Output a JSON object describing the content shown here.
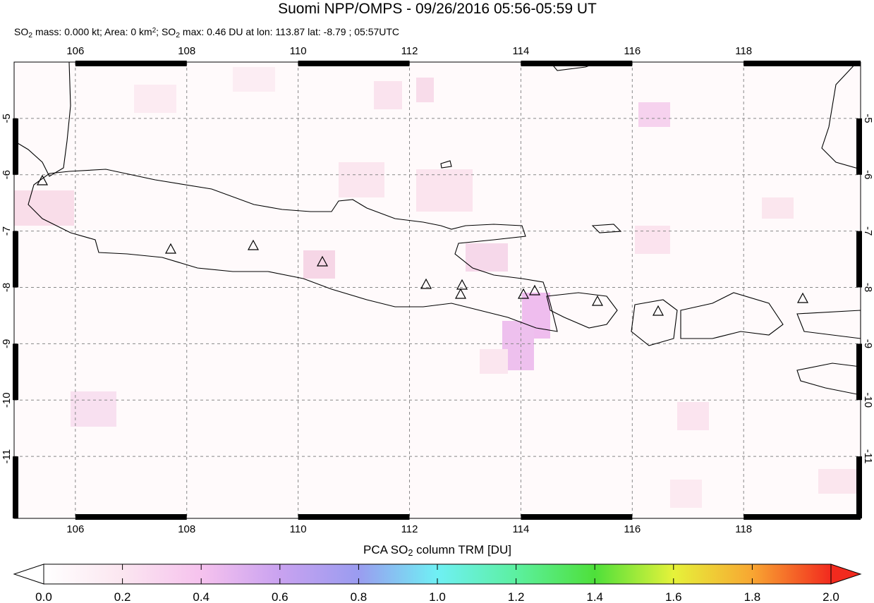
{
  "title": "Suomi NPP/OMPS - 09/26/2016 05:56-05:59 UT",
  "subtitle_parts": [
    {
      "text": "SO",
      "style": "normal"
    },
    {
      "text": "2",
      "style": "sub"
    },
    {
      "text": " mass: 0.000 kt; Area: 0 km",
      "style": "normal"
    },
    {
      "text": "2",
      "style": "sup"
    },
    {
      "text": "; SO",
      "style": "normal"
    },
    {
      "text": "2",
      "style": "sub"
    },
    {
      "text": " max: 0.46 DU at lon: 113.87 lat: -8.79 ; 05:57UTC",
      "style": "normal"
    }
  ],
  "map": {
    "xlim": [
      104.9,
      120.1
    ],
    "ylim": [
      -12.1,
      -4
    ],
    "xticks": [
      106,
      108,
      110,
      112,
      114,
      116,
      118
    ],
    "yticks": [
      -5,
      -6,
      -7,
      -8,
      -9,
      -10,
      -11
    ],
    "grid": true
  },
  "colorbar": {
    "label_parts": [
      {
        "text": "PCA SO",
        "style": "normal"
      },
      {
        "text": "2",
        "style": "sub"
      },
      {
        "text": " column TRM [DU]",
        "style": "normal"
      }
    ],
    "clim": [
      0,
      2
    ],
    "ticks": [
      {
        "value": 0,
        "label": "0.0"
      },
      {
        "value": 0.2,
        "label": "0.2"
      },
      {
        "value": 0.4,
        "label": "0.4"
      },
      {
        "value": 0.6,
        "label": "0.6"
      },
      {
        "value": 0.8,
        "label": "0.8"
      },
      {
        "value": 1,
        "label": "1.0"
      },
      {
        "value": 1.2,
        "label": "1.2"
      },
      {
        "value": 1.4,
        "label": "1.4"
      },
      {
        "value": 1.6,
        "label": "1.6"
      },
      {
        "value": 1.8,
        "label": "1.8"
      },
      {
        "value": 2,
        "label": "2.0"
      }
    ]
  }
}
